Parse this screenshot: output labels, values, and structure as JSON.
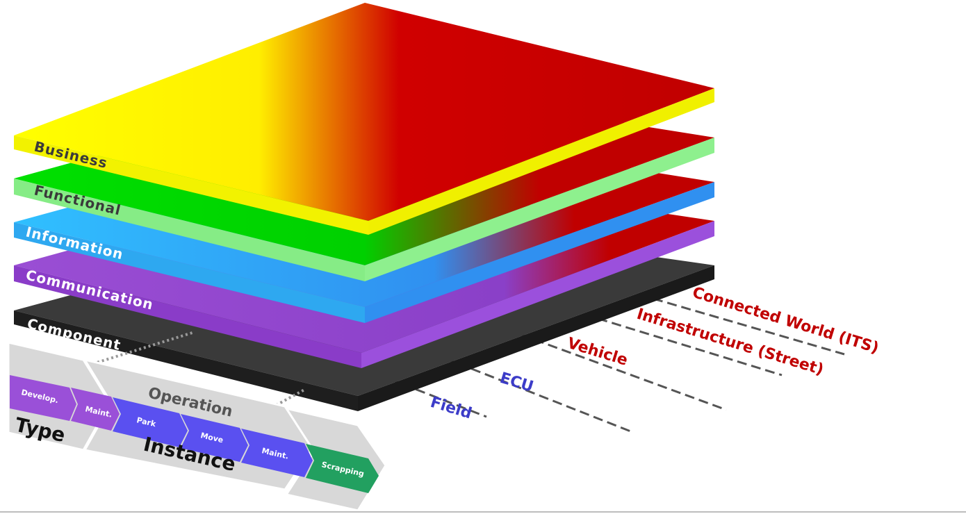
{
  "layers": [
    {
      "id": "business",
      "label": "Business",
      "front_color": "#f2f200",
      "top_color": "#ffff00",
      "label_color": "#3a3a3a"
    },
    {
      "id": "functional",
      "label": "Functional",
      "front_color": "#86ec86",
      "top_color": "#00e000",
      "label_color": "#3a3a3a"
    },
    {
      "id": "information",
      "label": "Information",
      "front_color": "#2ea8f0",
      "top_color": "#30c0ff",
      "label_color": "#ffffff"
    },
    {
      "id": "communication",
      "label": "Communication",
      "front_color": "#8a3cc8",
      "top_color": "#9a4ed4",
      "label_color": "#ffffff"
    },
    {
      "id": "component",
      "label": "Component",
      "front_color": "#1e1e1e",
      "top_color": "#3a3a3a",
      "label_color": "#ffffff"
    }
  ],
  "accent_red": "#c00000",
  "hierarchy_levels": [
    {
      "label": "Connected World (ITS)",
      "color": "#c00000"
    },
    {
      "label": "Infrastructure (Street)",
      "color": "#c00000"
    },
    {
      "label": "Vehicle",
      "color": "#c00000"
    },
    {
      "label": "ECU",
      "color": "#3c3cc8"
    },
    {
      "label": "Field",
      "color": "#3c3cc8"
    }
  ],
  "life_cycle": {
    "type_label": "Type",
    "operation_label": "Operation",
    "instance_label": "Instance",
    "phases": [
      {
        "label": "Develop.",
        "color": "#9a50d8"
      },
      {
        "label": "Maint.",
        "color": "#9a50d8"
      },
      {
        "label": "Park",
        "color": "#5a50f0"
      },
      {
        "label": "Move",
        "color": "#5a50f0"
      },
      {
        "label": "Maint.",
        "color": "#5a50f0"
      },
      {
        "label": "Scrapping",
        "color": "#22a060"
      }
    ]
  }
}
